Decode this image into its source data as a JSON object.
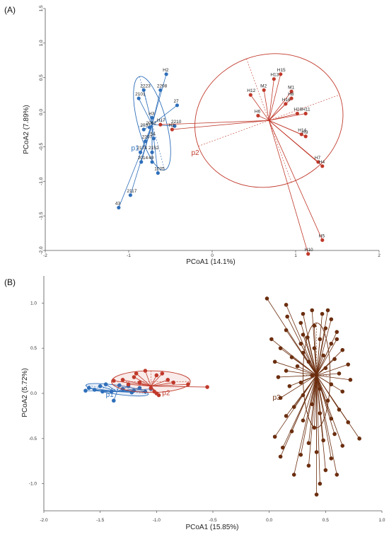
{
  "colors": {
    "p1": "#2f6fba",
    "p2": "#c0392b",
    "p3": "#6b2e0f",
    "axis": "#555555"
  },
  "chart_data": [
    {
      "type": "scatter",
      "panel_label": "(A)",
      "xlabel": "PCoA1 (14.1%)",
      "ylabel": "PCoA2 (7.89%)",
      "xlim": [
        -2,
        2
      ],
      "ylim": [
        -2,
        1.5
      ],
      "x_ticks": [
        "-2",
        "-1",
        "0",
        "1",
        "2"
      ],
      "y_ticks": [
        "-2.0",
        "-1.5",
        "-1.0",
        "-0.5",
        "0.0",
        "0.5",
        "1.0",
        "1.5"
      ],
      "series": [
        {
          "key": "p1",
          "name": "p1",
          "color_key": "p1",
          "centroid": [
            -0.72,
            -0.18
          ],
          "ellipse": {
            "center": [
              -0.72,
              -0.16
            ],
            "rx": 0.17,
            "ry": 0.7,
            "angle": -15
          },
          "label_pos": [
            -0.97,
            -0.55
          ],
          "points": [
            {
              "label": "H2",
              "x": -0.55,
              "y": 0.55
            },
            {
              "label": "2223",
              "x": -0.82,
              "y": 0.32
            },
            {
              "label": "2208",
              "x": -0.62,
              "y": 0.32
            },
            {
              "label": "2101",
              "x": -0.88,
              "y": 0.2
            },
            {
              "label": "27",
              "x": -0.42,
              "y": 0.1
            },
            {
              "label": "H3",
              "x": -0.72,
              "y": -0.08
            },
            {
              "label": "2210",
              "x": -0.45,
              "y": -0.2
            },
            {
              "label": "2032",
              "x": -0.82,
              "y": -0.25
            },
            {
              "label": "2062",
              "x": -0.75,
              "y": -0.22
            },
            {
              "label": "2207",
              "x": -0.8,
              "y": -0.42
            },
            {
              "label": "54",
              "x": -0.7,
              "y": -0.38
            },
            {
              "label": "2174",
              "x": -0.86,
              "y": -0.58
            },
            {
              "label": "2152",
              "x": -0.72,
              "y": -0.58
            },
            {
              "label": "2014",
              "x": -0.85,
              "y": -0.72
            },
            {
              "label": "49",
              "x": -0.72,
              "y": -0.72
            },
            {
              "label": "1025",
              "x": -0.65,
              "y": -0.88
            },
            {
              "label": "2117",
              "x": -0.98,
              "y": -1.2
            },
            {
              "label": "43",
              "x": -1.12,
              "y": -1.38
            }
          ]
        },
        {
          "key": "p2",
          "name": "p2",
          "color_key": "p2",
          "centroid": [
            0.68,
            -0.12
          ],
          "ellipse": {
            "center": [
              0.68,
              -0.12
            ],
            "rx": 0.9,
            "ry": 0.95,
            "angle": -20
          },
          "label_pos": [
            -0.25,
            -0.62
          ],
          "points": [
            {
              "label": "H15",
              "x": 0.82,
              "y": 0.55
            },
            {
              "label": "H13",
              "x": 0.74,
              "y": 0.48
            },
            {
              "label": "M2",
              "x": 0.62,
              "y": 0.32
            },
            {
              "label": "H12",
              "x": 0.46,
              "y": 0.25
            },
            {
              "label": "M1",
              "x": 0.95,
              "y": 0.3
            },
            {
              "label": "H8",
              "x": 0.95,
              "y": 0.2
            },
            {
              "label": "H16",
              "x": 0.88,
              "y": 0.12
            },
            {
              "label": "H6",
              "x": 0.55,
              "y": -0.05
            },
            {
              "label": "H18",
              "x": 1.02,
              "y": -0.02
            },
            {
              "label": "H11",
              "x": 1.12,
              "y": -0.02
            },
            {
              "label": "H14",
              "x": 1.07,
              "y": -0.32
            },
            {
              "label": "H9",
              "x": 1.12,
              "y": -0.35
            },
            {
              "label": "H7",
              "x": 1.27,
              "y": -0.72
            },
            {
              "label": "H4",
              "x": 1.32,
              "y": -0.78
            },
            {
              "label": "H5",
              "x": 1.32,
              "y": -1.85
            },
            {
              "label": "H10",
              "x": 1.15,
              "y": -2.05
            },
            {
              "label": "H1",
              "x": -0.48,
              "y": -0.25
            },
            {
              "label": "H17",
              "x": -0.62,
              "y": -0.18
            }
          ]
        }
      ]
    },
    {
      "type": "scatter",
      "panel_label": "(B)",
      "xlabel": "PCoA1 (15.85%)",
      "ylabel": "PCoA2 (5.72%)",
      "xlim": [
        -2.0,
        1.0
      ],
      "ylim": [
        -1.3,
        1.3
      ],
      "x_ticks": [
        "-2.0",
        "-1.5",
        "-1.0",
        "-0.5",
        "0.0",
        "0.5",
        "1.0"
      ],
      "y_ticks": [
        "-1.0",
        "-0.5",
        "0.0",
        "0.5",
        "1.0"
      ],
      "series": [
        {
          "key": "p1",
          "name": "p1",
          "color_key": "p1",
          "centroid": [
            -1.35,
            0.02
          ],
          "ellipse": {
            "center": [
              -1.35,
              0.04
            ],
            "rx": 0.28,
            "ry": 0.05,
            "angle": 8
          },
          "label_pos": [
            -1.45,
            -0.04
          ],
          "points": [
            {
              "x": -1.63,
              "y": 0.03
            },
            {
              "x": -1.6,
              "y": 0.06
            },
            {
              "x": -1.55,
              "y": 0.04
            },
            {
              "x": -1.5,
              "y": 0.08
            },
            {
              "x": -1.45,
              "y": 0.1
            },
            {
              "x": -1.4,
              "y": 0.02
            },
            {
              "x": -1.38,
              "y": -0.08
            },
            {
              "x": -1.3,
              "y": 0.05
            },
            {
              "x": -1.25,
              "y": 0.08
            },
            {
              "x": -1.2,
              "y": 0.03
            },
            {
              "x": -1.15,
              "y": 0.06
            },
            {
              "x": -1.1,
              "y": 0.02
            },
            {
              "x": -1.48,
              "y": 0.02
            },
            {
              "x": -1.33,
              "y": 0.09
            },
            {
              "x": -1.22,
              "y": 0.01
            },
            {
              "x": -1.05,
              "y": 0.05
            }
          ]
        },
        {
          "key": "p2",
          "name": "p2",
          "color_key": "p2",
          "centroid": [
            -1.05,
            0.08
          ],
          "ellipse": {
            "center": [
              -1.05,
              0.13
            ],
            "rx": 0.35,
            "ry": 0.12,
            "angle": 0
          },
          "label_pos": [
            -0.95,
            -0.02
          ],
          "points": [
            {
              "x": -1.1,
              "y": 0.25
            },
            {
              "x": -1.0,
              "y": 0.2
            },
            {
              "x": -0.95,
              "y": 0.22
            },
            {
              "x": -1.2,
              "y": 0.18
            },
            {
              "x": -1.15,
              "y": 0.12
            },
            {
              "x": -0.9,
              "y": 0.15
            },
            {
              "x": -0.85,
              "y": 0.12
            },
            {
              "x": -1.25,
              "y": 0.1
            },
            {
              "x": -1.3,
              "y": 0.15
            },
            {
              "x": -0.72,
              "y": 0.1
            },
            {
              "x": -0.55,
              "y": 0.07
            },
            {
              "x": -1.0,
              "y": 0.0
            },
            {
              "x": -1.02,
              "y": 0.02
            },
            {
              "x": -1.05,
              "y": 0.06
            },
            {
              "x": -0.98,
              "y": -0.02
            },
            {
              "x": -1.38,
              "y": 0.14
            },
            {
              "x": -1.18,
              "y": 0.22
            }
          ]
        },
        {
          "key": "p3",
          "name": "p3",
          "color_key": "p3",
          "centroid": [
            0.42,
            0.2
          ],
          "ellipse": {
            "center": [
              0.42,
              0.2
            ],
            "rx": 0.12,
            "ry": 0.58,
            "angle": 0
          },
          "label_pos": [
            0.03,
            -0.07
          ],
          "points": [
            {
              "x": -0.02,
              "y": 1.05
            },
            {
              "x": 0.15,
              "y": 0.98
            },
            {
              "x": 0.38,
              "y": 0.92
            },
            {
              "x": 0.52,
              "y": 0.92
            },
            {
              "x": 0.3,
              "y": 0.88
            },
            {
              "x": 0.47,
              "y": 0.88
            },
            {
              "x": 0.55,
              "y": 0.82
            },
            {
              "x": 0.28,
              "y": 0.78
            },
            {
              "x": 0.4,
              "y": 0.75
            },
            {
              "x": 0.5,
              "y": 0.72
            },
            {
              "x": 0.15,
              "y": 0.7
            },
            {
              "x": 0.6,
              "y": 0.68
            },
            {
              "x": 0.34,
              "y": 0.62
            },
            {
              "x": 0.45,
              "y": 0.6
            },
            {
              "x": 0.02,
              "y": 0.6
            },
            {
              "x": 0.28,
              "y": 0.55
            },
            {
              "x": 0.55,
              "y": 0.55
            },
            {
              "x": 0.4,
              "y": 0.5
            },
            {
              "x": 0.1,
              "y": 0.5
            },
            {
              "x": 0.65,
              "y": 0.48
            },
            {
              "x": 0.3,
              "y": 0.45
            },
            {
              "x": 0.48,
              "y": 0.42
            },
            {
              "x": 0.2,
              "y": 0.4
            },
            {
              "x": 0.58,
              "y": 0.38
            },
            {
              "x": 0.05,
              "y": 0.35
            },
            {
              "x": 0.35,
              "y": 0.35
            },
            {
              "x": 0.7,
              "y": 0.32
            },
            {
              "x": 0.25,
              "y": 0.3
            },
            {
              "x": 0.5,
              "y": 0.28
            },
            {
              "x": 0.15,
              "y": 0.25
            },
            {
              "x": 0.62,
              "y": 0.22
            },
            {
              "x": 0.38,
              "y": 0.2
            },
            {
              "x": 0.08,
              "y": 0.18
            },
            {
              "x": 0.72,
              "y": 0.15
            },
            {
              "x": 0.28,
              "y": 0.12
            },
            {
              "x": 0.55,
              "y": 0.1
            },
            {
              "x": 0.18,
              "y": 0.08
            },
            {
              "x": 0.45,
              "y": 0.05
            },
            {
              "x": 0.65,
              "y": 0.02
            },
            {
              "x": 0.3,
              "y": -0.02
            },
            {
              "x": 0.1,
              "y": -0.05
            },
            {
              "x": 0.52,
              "y": -0.08
            },
            {
              "x": 0.38,
              "y": -0.12
            },
            {
              "x": 0.22,
              "y": -0.15
            },
            {
              "x": 0.62,
              "y": -0.18
            },
            {
              "x": 0.45,
              "y": -0.22
            },
            {
              "x": 0.15,
              "y": -0.25
            },
            {
              "x": 0.55,
              "y": -0.28
            },
            {
              "x": 0.3,
              "y": -0.3
            },
            {
              "x": 0.7,
              "y": -0.32
            },
            {
              "x": 0.4,
              "y": -0.38
            },
            {
              "x": 0.2,
              "y": -0.42
            },
            {
              "x": 0.58,
              "y": -0.45
            },
            {
              "x": 0.05,
              "y": -0.48
            },
            {
              "x": 0.48,
              "y": -0.52
            },
            {
              "x": 0.35,
              "y": -0.55
            },
            {
              "x": 0.65,
              "y": -0.58
            },
            {
              "x": 0.12,
              "y": -0.6
            },
            {
              "x": 0.42,
              "y": -0.65
            },
            {
              "x": 0.28,
              "y": -0.68
            },
            {
              "x": 0.55,
              "y": -0.72
            },
            {
              "x": 0.8,
              "y": -0.5
            },
            {
              "x": 0.1,
              "y": -0.7
            },
            {
              "x": 0.35,
              "y": -0.8
            },
            {
              "x": 0.5,
              "y": -0.85
            },
            {
              "x": 0.6,
              "y": -0.9
            },
            {
              "x": 0.45,
              "y": -1.0
            },
            {
              "x": 0.42,
              "y": -1.12
            },
            {
              "x": 0.22,
              "y": -0.9
            },
            {
              "x": 0.3,
              "y": 0.65
            },
            {
              "x": 0.6,
              "y": 0.6
            },
            {
              "x": 0.16,
              "y": 0.85
            }
          ]
        }
      ]
    }
  ]
}
